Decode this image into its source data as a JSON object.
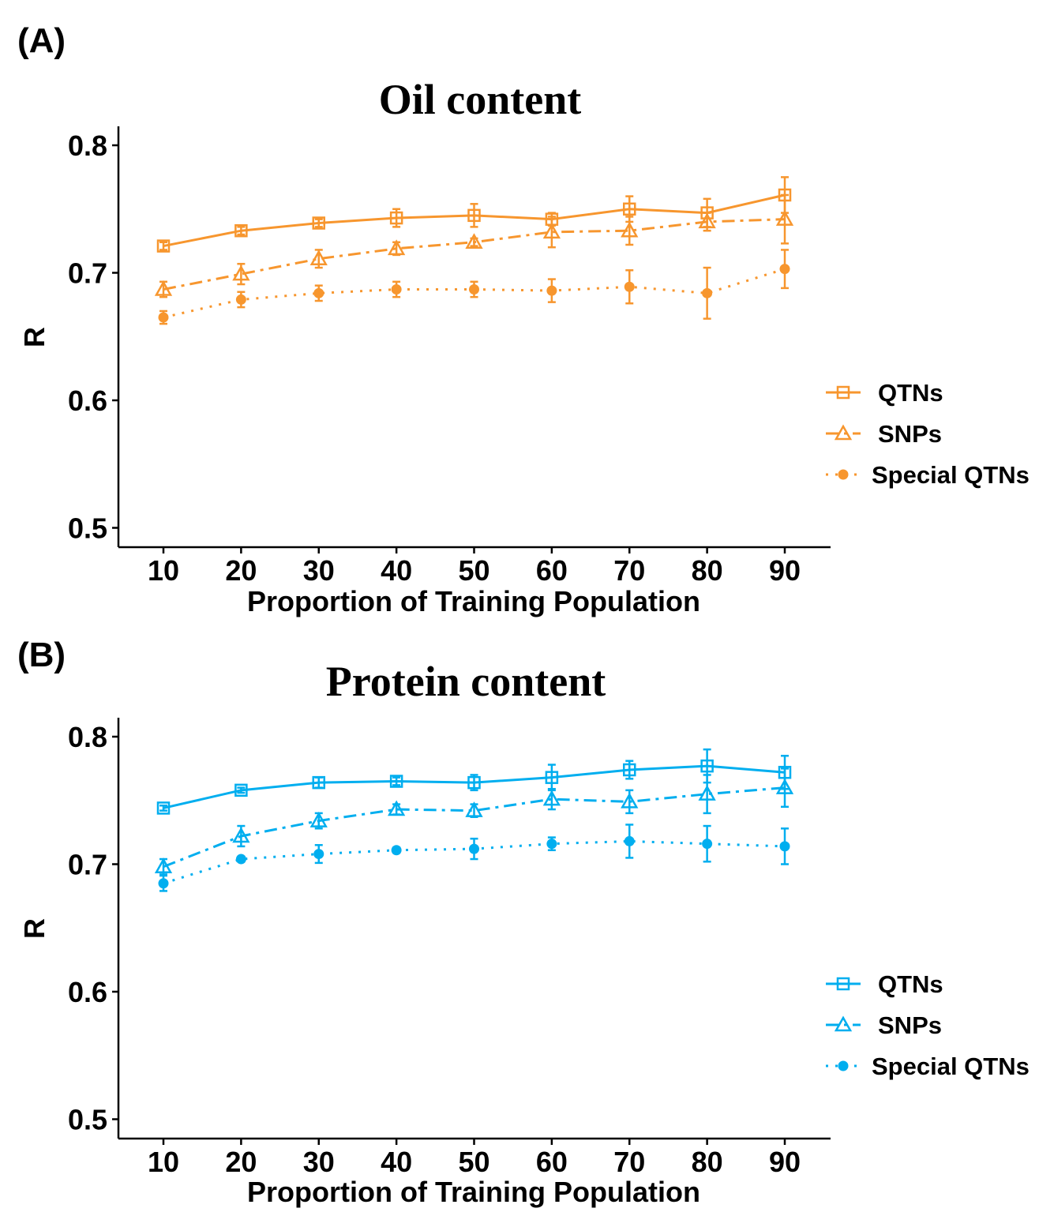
{
  "chart_data": [
    {
      "type": "line",
      "panel_label": "(A)",
      "title": "Oil content",
      "xlabel": "Proportion of Training Population",
      "ylabel": "R",
      "x": [
        10,
        20,
        30,
        40,
        50,
        60,
        70,
        80,
        90
      ],
      "x_ticks": [
        "10",
        "20",
        "30",
        "40",
        "50",
        "60",
        "70",
        "80",
        "90"
      ],
      "y_ticks": [
        "0.5",
        "0.6",
        "0.7",
        "0.8"
      ],
      "ylim": [
        0.485,
        0.82
      ],
      "grid": false,
      "legend_position": "right",
      "color": "#F7962E",
      "series": [
        {
          "name": "QTNs",
          "marker": "open-square",
          "line": "solid",
          "values": [
            0.721,
            0.733,
            0.739,
            0.743,
            0.745,
            0.742,
            0.75,
            0.747,
            0.761
          ],
          "error": [
            0.003,
            0.003,
            0.003,
            0.007,
            0.009,
            0.005,
            0.01,
            0.011,
            0.014
          ]
        },
        {
          "name": "SNPs",
          "marker": "open-triangle",
          "line": "dash-dot",
          "values": [
            0.687,
            0.699,
            0.711,
            0.719,
            0.724,
            0.732,
            0.733,
            0.74,
            0.742
          ],
          "error": [
            0.006,
            0.008,
            0.007,
            0.005,
            0.003,
            0.012,
            0.011,
            0.007,
            0.019
          ]
        },
        {
          "name": "Special QTNs",
          "marker": "filled-circle",
          "line": "dotted",
          "values": [
            0.665,
            0.679,
            0.684,
            0.687,
            0.687,
            0.686,
            0.689,
            0.684,
            0.703
          ],
          "error": [
            0.005,
            0.006,
            0.006,
            0.006,
            0.006,
            0.009,
            0.013,
            0.02,
            0.015
          ]
        }
      ]
    },
    {
      "type": "line",
      "panel_label": "(B)",
      "title": "Protein content",
      "xlabel": "Proportion of Training Population",
      "ylabel": "R",
      "x": [
        10,
        20,
        30,
        40,
        50,
        60,
        70,
        80,
        90
      ],
      "x_ticks": [
        "10",
        "20",
        "30",
        "40",
        "50",
        "60",
        "70",
        "80",
        "90"
      ],
      "y_ticks": [
        "0.5",
        "0.6",
        "0.7",
        "0.8"
      ],
      "ylim": [
        0.485,
        0.815
      ],
      "grid": false,
      "legend_position": "right",
      "color": "#00AEEF",
      "series": [
        {
          "name": "QTNs",
          "marker": "open-square",
          "line": "solid",
          "values": [
            0.744,
            0.758,
            0.764,
            0.765,
            0.764,
            0.768,
            0.774,
            0.777,
            0.772
          ],
          "error": [
            0.002,
            0.002,
            0.004,
            0.003,
            0.006,
            0.01,
            0.007,
            0.013,
            0.013
          ]
        },
        {
          "name": "SNPs",
          "marker": "open-triangle",
          "line": "dash-dot",
          "values": [
            0.698,
            0.722,
            0.734,
            0.743,
            0.742,
            0.751,
            0.749,
            0.755,
            0.76
          ],
          "error": [
            0.006,
            0.008,
            0.006,
            0.004,
            0.005,
            0.008,
            0.009,
            0.015,
            0.015
          ]
        },
        {
          "name": "Special QTNs",
          "marker": "filled-circle",
          "line": "dotted",
          "values": [
            0.685,
            0.704,
            0.708,
            0.711,
            0.712,
            0.716,
            0.718,
            0.716,
            0.714
          ],
          "error": [
            0.006,
            0.002,
            0.007,
            0.002,
            0.008,
            0.005,
            0.013,
            0.014,
            0.014
          ]
        }
      ]
    }
  ]
}
